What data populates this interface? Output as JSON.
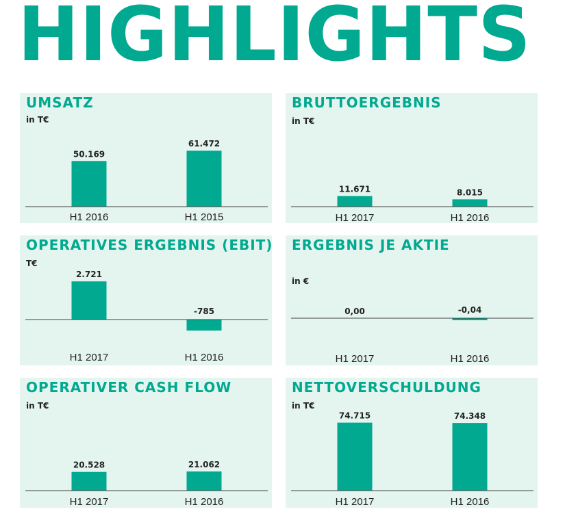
{
  "page_title": "HIGHLIGHTS",
  "colors": {
    "accent": "#00a98f",
    "panel_bg": "#e4f4ef",
    "axis": "#444444",
    "text": "#222222"
  },
  "chart_data": [
    {
      "type": "bar",
      "title": "UMSATZ",
      "unit": "in T€",
      "categories": [
        "H1 2016",
        "H1 2015"
      ],
      "values": [
        50.169,
        61.472
      ],
      "value_labels": [
        "50.169",
        "61.472"
      ],
      "ylim": [
        0,
        75
      ]
    },
    {
      "type": "bar",
      "title": "BRUTTOERGEBNIS",
      "unit": "in T€",
      "categories": [
        "H1 2017",
        "H1 2016"
      ],
      "values": [
        11.671,
        8.015
      ],
      "value_labels": [
        "11.671",
        "8.015"
      ],
      "ylim": [
        0,
        75
      ]
    },
    {
      "type": "bar",
      "title": "OPERATIVES ERGEBNIS (EBIT)",
      "unit": "T€",
      "categories": [
        "H1 2017",
        "H1 2016"
      ],
      "values": [
        2721,
        -785
      ],
      "value_labels": [
        "2.721",
        "-785"
      ],
      "ylim": [
        -2000,
        3000
      ]
    },
    {
      "type": "bar",
      "title": "ERGEBNIS JE AKTIE",
      "unit": "in €",
      "categories": [
        "H1 2017",
        "H1 2016"
      ],
      "values": [
        0.0,
        -0.04
      ],
      "value_labels": [
        "0,00",
        "-0,04"
      ],
      "ylim": [
        -1,
        1
      ]
    },
    {
      "type": "bar",
      "title": "OPERATIVER CASH FLOW",
      "unit": "in T€",
      "categories": [
        "H1 2017",
        "H1 2016"
      ],
      "values": [
        20.528,
        21.062
      ],
      "value_labels": [
        "20.528",
        "21.062"
      ],
      "ylim": [
        0,
        75
      ]
    },
    {
      "type": "bar",
      "title": "NETTOVERSCHULDUNG",
      "unit": "in T€",
      "categories": [
        "H1 2017",
        "H1 2016"
      ],
      "values": [
        74.715,
        74.348
      ],
      "value_labels": [
        "74.715",
        "74.348"
      ],
      "ylim": [
        0,
        75
      ]
    }
  ]
}
